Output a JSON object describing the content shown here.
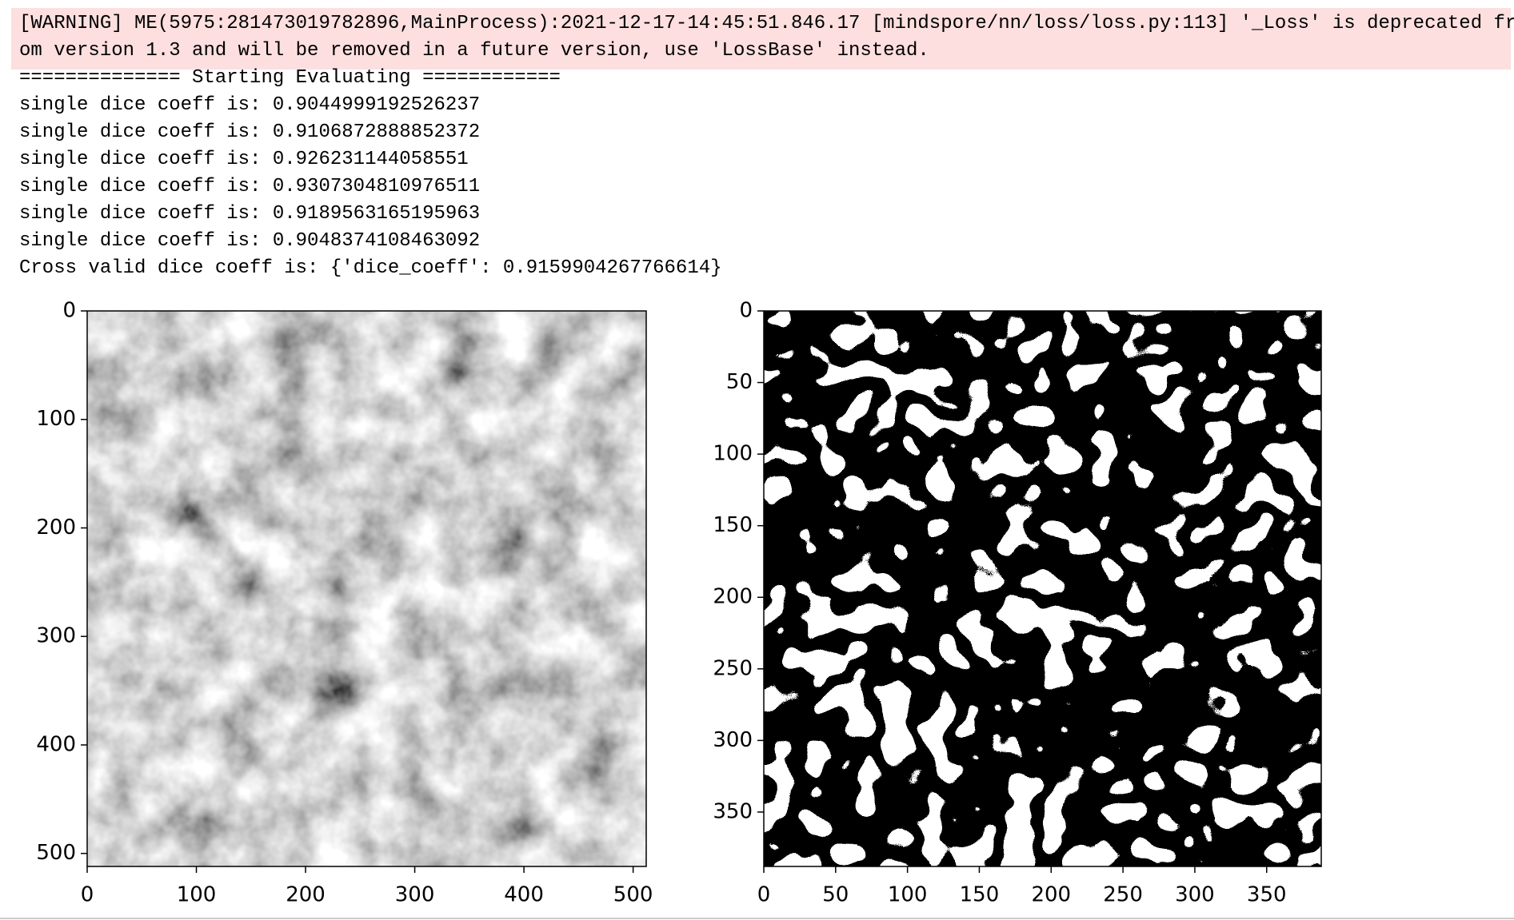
{
  "output": {
    "warning": [
      "[WARNING] ME(5975:281473019782896,MainProcess):2021-12-17-14:45:51.846.17 [mindspore/nn/loss/loss.py:113] '_Loss' is deprecated fr",
      "om version 1.3 and will be removed in a future version, use 'LossBase' instead."
    ],
    "lines": [
      "============== Starting Evaluating ============",
      "single dice coeff is: 0.9044999192526237",
      "single dice coeff is: 0.9106872888852372",
      "single dice coeff is: 0.926231144058551",
      "single dice coeff is: 0.9307304810976511",
      "single dice coeff is: 0.9189563165195963",
      "single dice coeff is: 0.9048374108463092",
      "Cross valid dice coeff is: {'dice_coeff': 0.9159904267766614}"
    ]
  },
  "figures": [
    {
      "xlim": [
        0,
        512
      ],
      "ylim": [
        0,
        512
      ],
      "xticks": [
        0,
        100,
        200,
        300,
        400,
        500
      ],
      "yticks": [
        0,
        100,
        200,
        300,
        400,
        500
      ]
    },
    {
      "xlim": [
        0,
        388
      ],
      "ylim": [
        0,
        388
      ],
      "xticks": [
        0,
        50,
        100,
        150,
        200,
        250,
        300,
        350
      ],
      "yticks": [
        0,
        50,
        100,
        150,
        200,
        250,
        300,
        350
      ]
    }
  ]
}
